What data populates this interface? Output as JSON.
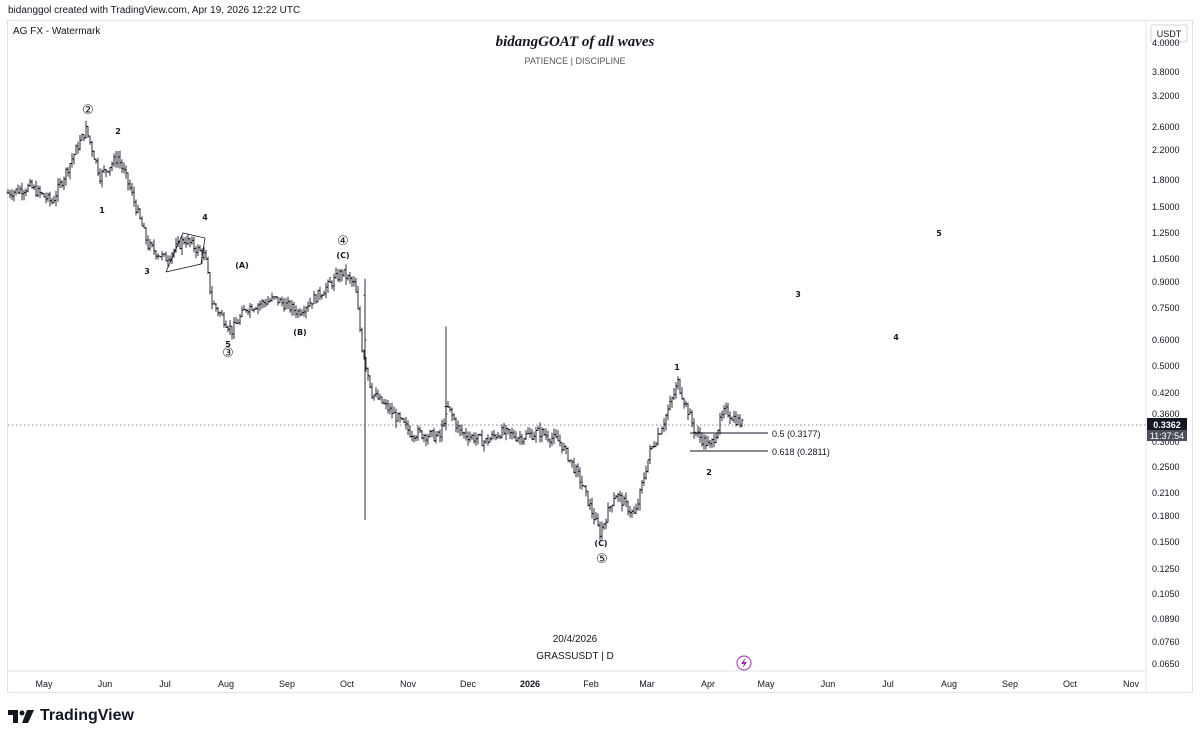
{
  "header": {
    "created_note": "bidanggol created with TradingView.com, Apr 19, 2026 12:22 UTC",
    "watermark_label": "AG FX - Watermark",
    "title": "bidangGOAT of all waves",
    "subtitle": "PATIENCE | DISCIPLINE"
  },
  "footer": {
    "date_label": "20/4/2026",
    "symbol_label": "GRASSUSDT | D",
    "brand": "TradingView"
  },
  "colors": {
    "bars": "#131722",
    "grid": "#e0e3eb",
    "price_tag_bg": "#131722",
    "price_tag_text": "#ffffff",
    "lightning": "#9c27b0"
  },
  "chart_data": {
    "type": "ohlc-bar",
    "symbol": "GRASSUSDT",
    "interval": "D",
    "currency": "USDT",
    "scale": "log",
    "x_axis_labels": [
      "May",
      "Jun",
      "Jul",
      "Aug",
      "Sep",
      "Oct",
      "Nov",
      "Dec",
      "2026",
      "Feb",
      "Mar",
      "Apr",
      "May",
      "Jun",
      "Jul",
      "Aug",
      "Sep",
      "Oct",
      "Nov"
    ],
    "y_axis_ticks": [
      "4.0000",
      "3.8000",
      "3.2000",
      "2.6000",
      "2.2000",
      "1.8000",
      "1.5000",
      "1.2500",
      "1.0500",
      "0.9000",
      "0.7500",
      "0.6000",
      "0.5000",
      "0.4200",
      "0.3600",
      "0.3000",
      "0.2500",
      "0.2100",
      "0.1800",
      "0.1500",
      "0.1250",
      "0.1050",
      "0.0890",
      "0.0760",
      "0.0650"
    ],
    "last_price": "0.3362",
    "countdown": "11:37:54",
    "price_path": [
      [
        "May",
        1.65
      ],
      [
        "May",
        1.72
      ],
      [
        "May",
        1.55
      ],
      [
        "Jun",
        2.55
      ],
      [
        "Jun",
        1.85
      ],
      [
        "Jun",
        2.1
      ],
      [
        "Jun",
        1.7
      ],
      [
        "Jul",
        1.15
      ],
      [
        "Jul",
        1.05
      ],
      [
        "Jul",
        1.2
      ],
      [
        "Jul",
        1.07
      ],
      [
        "Aug",
        0.78
      ],
      [
        "Aug",
        0.64
      ],
      [
        "Aug",
        0.75
      ],
      [
        "Sep",
        0.8
      ],
      [
        "Sep",
        0.73
      ],
      [
        "Sep",
        0.82
      ],
      [
        "Oct",
        0.96
      ],
      [
        "Oct",
        0.88
      ],
      [
        "Oct",
        0.57
      ],
      [
        "Oct",
        0.42
      ],
      [
        "Nov",
        0.32
      ],
      [
        "Nov",
        0.31
      ],
      [
        "Nov",
        0.38
      ],
      [
        "Nov",
        0.32
      ],
      [
        "Dec",
        0.3
      ],
      [
        "Dec",
        0.32
      ],
      [
        "Dec",
        0.31
      ],
      [
        "2026",
        0.32
      ],
      [
        "2026",
        0.3
      ],
      [
        "Feb",
        0.23
      ],
      [
        "Feb",
        0.16
      ],
      [
        "Feb",
        0.21
      ],
      [
        "Mar",
        0.18
      ],
      [
        "Mar",
        0.28
      ],
      [
        "Mar",
        0.35
      ],
      [
        "Mar",
        0.45
      ],
      [
        "Apr",
        0.32
      ],
      [
        "Apr",
        0.29
      ],
      [
        "Apr",
        0.37
      ],
      [
        "Apr",
        0.3362
      ]
    ],
    "fib_levels": [
      {
        "label": "0.5 (0.3177)",
        "value": 0.3177
      },
      {
        "label": "0.618 (0.2811)",
        "value": 0.2811
      }
    ],
    "wave_labels": [
      {
        "text": "②",
        "circled": true
      },
      {
        "text": "1"
      },
      {
        "text": "2"
      },
      {
        "text": "3"
      },
      {
        "text": "4"
      },
      {
        "text": "5"
      },
      {
        "text": "③",
        "circled": true
      },
      {
        "text": "(A)"
      },
      {
        "text": "(B)"
      },
      {
        "text": "(C)"
      },
      {
        "text": "④",
        "circled": true
      },
      {
        "text": "(C)"
      },
      {
        "text": "⑤",
        "circled": true
      },
      {
        "text": "1"
      },
      {
        "text": "2"
      },
      {
        "text": "3"
      },
      {
        "text": "4"
      },
      {
        "text": "5"
      }
    ]
  }
}
